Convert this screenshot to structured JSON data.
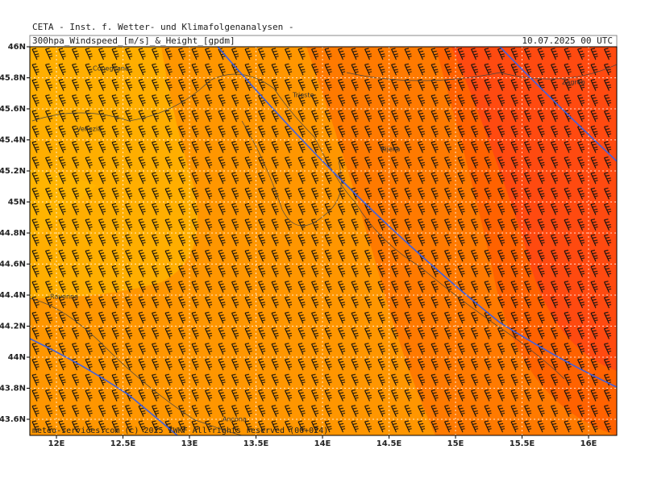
{
  "header": {
    "text": "CETA - Inst. f. Wetter- und Klimafolgenanalysen -"
  },
  "map": {
    "title": "300hpa_Windspeed_[m/s]_&_Height_[gpdm]",
    "valid": "10.07.2025 00 UTC",
    "lat_labels": [
      "46N",
      "45.8N",
      "45.6N",
      "45.4N",
      "45.2N",
      "45N",
      "44.8N",
      "44.6N",
      "44.4N",
      "44.2N",
      "44N",
      "43.8N",
      "43.6N"
    ],
    "lon_labels": [
      "12E",
      "12.5E",
      "13E",
      "13.5E",
      "14E",
      "14.5E",
      "15E",
      "15.5E",
      "16E"
    ],
    "places": [
      "Conegliano",
      "Trieste",
      "Venezia",
      "Zagreb",
      "Rijeka",
      "Ravenna",
      "Ancona"
    ]
  },
  "footer": {
    "text": "meteo-services.com (c) 2025 IWKF All rights reserved (00+024)"
  }
}
